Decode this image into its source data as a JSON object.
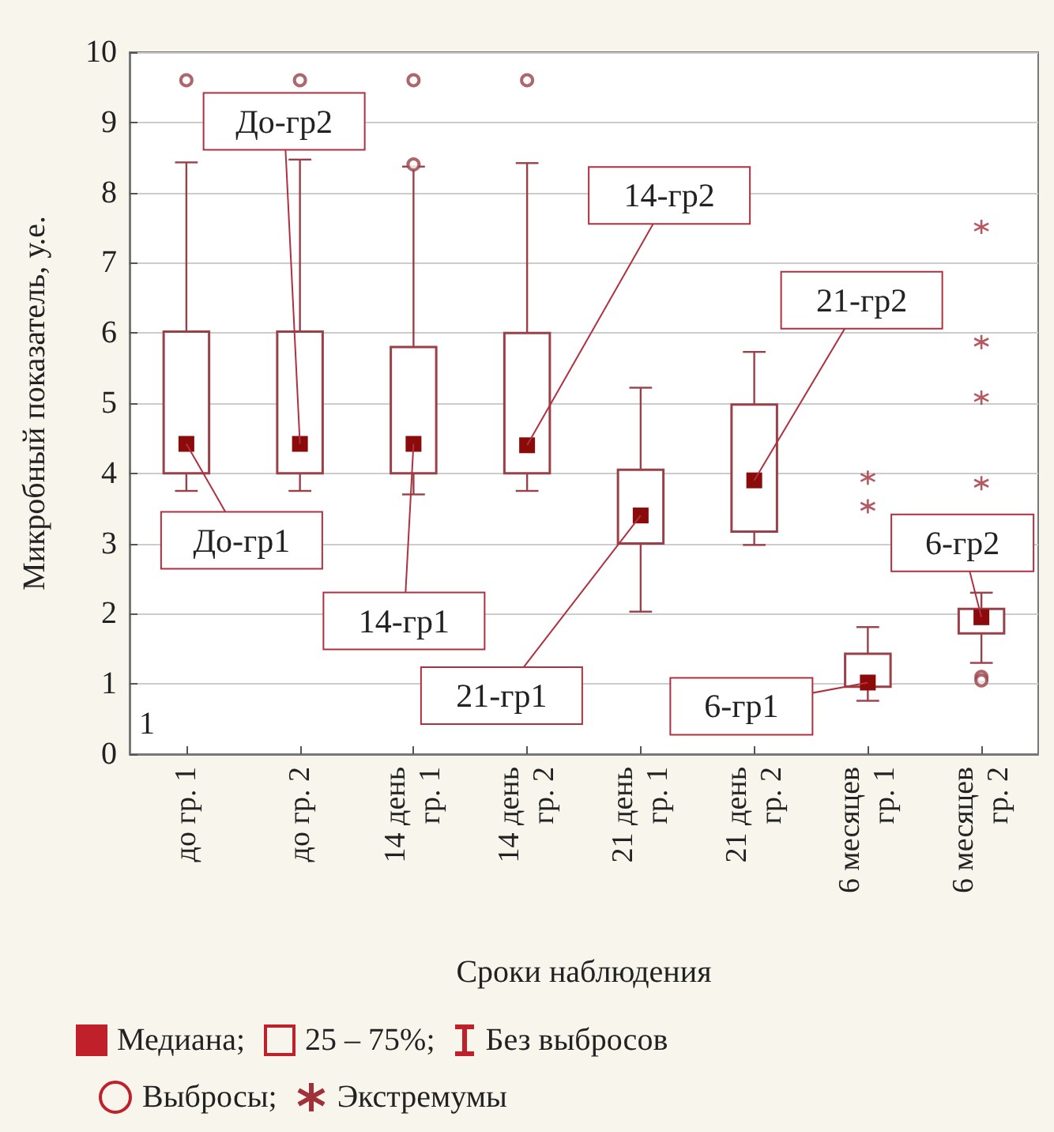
{
  "chart_data": {
    "type": "box",
    "xlabel": "Сроки наблюдения",
    "ylabel": "Микробный показатель, у.е.",
    "categories": [
      "до гр. 1",
      "до гр. 2",
      "14 день\nгр. 1",
      "14 день\nгр. 2",
      "21 день\nгр. 1",
      "21 день\nгр. 2",
      "6 месяцев\nгр. 1",
      "6 месяцев\nгр. 2"
    ],
    "ylim": [
      0,
      10
    ],
    "yticks": [
      0,
      1,
      2,
      3,
      4,
      5,
      6,
      7,
      8,
      9,
      10
    ],
    "grid": "y",
    "legend": "bottom",
    "series": [
      {
        "color": "#9a4048",
        "boxes": [
          {
            "low": 3.75,
            "q1": 4,
            "median": 4.42,
            "q3": 6.02,
            "high": 8.43,
            "outliers": [
              9.6
            ]
          },
          {
            "low": 3.75,
            "q1": 4,
            "median": 4.42,
            "q3": 6.02,
            "high": 8.47,
            "outliers": [
              9.6
            ]
          },
          {
            "low": 3.7,
            "q1": 4,
            "median": 4.42,
            "q3": 5.8,
            "high": 8.37,
            "outliers": [
              9.6,
              8.4
            ]
          },
          {
            "low": 3.75,
            "q1": 4,
            "median": 4.4,
            "q3": 6.0,
            "high": 8.42,
            "outliers": [
              9.6
            ]
          },
          {
            "low": 2.03,
            "q1": 3.0,
            "median": 3.4,
            "q3": 4.05,
            "high": 5.22
          },
          {
            "low": 2.98,
            "q1": 3.17,
            "median": 3.9,
            "q3": 4.98,
            "high": 5.73
          },
          {
            "low": 0.76,
            "q1": 0.96,
            "median": 1.02,
            "q3": 1.43,
            "high": 1.81
          },
          {
            "low": 1.3,
            "q1": 1.72,
            "median": 1.95,
            "q3": 2.07,
            "high": 2.3,
            "outliers": [
              1.1,
              1.05
            ]
          }
        ]
      },
      {
        "type": "scatter",
        "name": "Экстремумы",
        "color": "#a0303a",
        "marker": "cross",
        "x": [
          "6 месяцев\nгр. 1",
          "6 месяцев\nгр. 1",
          "6 месяцев\nгр. 2",
          "6 месяцев\nгр. 2",
          "6 месяцев\nгр. 2",
          "6 месяцев\nгр. 2"
        ],
        "values": [
          3.94,
          3.53,
          7.51,
          5.87,
          5.08,
          3.86
        ]
      }
    ],
    "annotations": [
      "1",
      "Медиана;",
      "25 – 75%;",
      "Без выбросов",
      "Выбросы;",
      {
        "text": "До-гр1",
        "x": "до гр. 1",
        "y": 4.42
      },
      {
        "text": "До-гр2",
        "x": "до гр. 2",
        "y": 4.42
      },
      {
        "text": "14-гр1",
        "x": "14 день\nгр. 1",
        "y": 4.42
      },
      {
        "text": "14-гр2",
        "x": "14 день\nгр. 2",
        "y": 4.4
      },
      {
        "text": "21-гр1",
        "x": "21 день\nгр. 1",
        "y": 3.4
      },
      {
        "text": "21-гр2",
        "x": "21 день\nгр. 2",
        "y": 3.9
      },
      {
        "text": "6-гр1",
        "x": "6 месяцев\nгр. 1",
        "y": 1.02
      },
      {
        "text": "6-гр2",
        "x": "6 месяцев\nгр. 2",
        "y": 1.95
      }
    ]
  }
}
